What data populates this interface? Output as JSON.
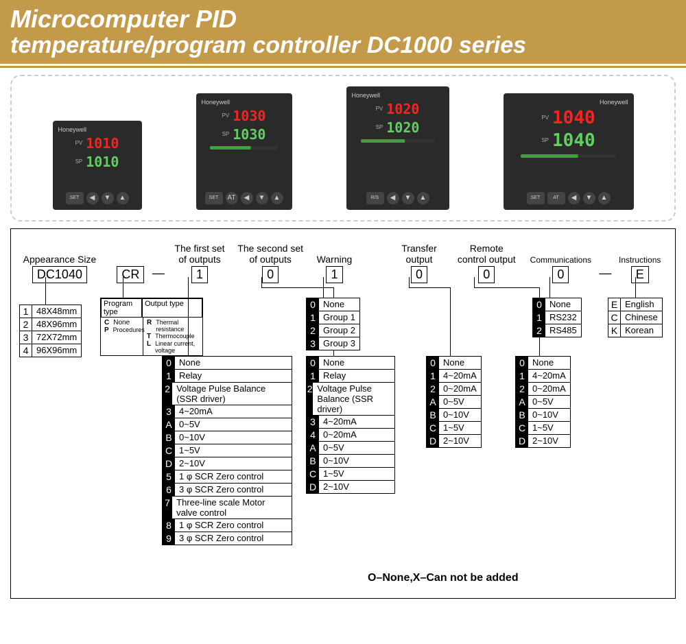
{
  "header": {
    "line1": "Microcomputer PID",
    "line2": "temperature/program controller DC1000 series"
  },
  "products": [
    {
      "pv": "1010",
      "sp": "1010",
      "brand": "Honeywell"
    },
    {
      "pv": "1030",
      "sp": "1030",
      "brand": "Honeywell"
    },
    {
      "pv": "1020",
      "sp": "1020",
      "brand": "Honeywell"
    },
    {
      "pv": "1040",
      "sp": "1040",
      "brand": "Honeywell"
    }
  ],
  "columns": {
    "appearance": {
      "label": "Appearance Size",
      "code": "DC1040"
    },
    "cr": {
      "label": "",
      "code": "CR"
    },
    "output1": {
      "label1": "The first set",
      "label2": "of outputs",
      "code": "1"
    },
    "output2": {
      "label1": "The second set",
      "label2": "of outputs",
      "code": "0"
    },
    "warning": {
      "label": "Warning",
      "code": "1"
    },
    "transfer": {
      "label1": "Transfer",
      "label2": "output",
      "code": "0"
    },
    "remote": {
      "label1": "Remote",
      "label2": "control output",
      "code": "0"
    },
    "comms": {
      "label": "Communications",
      "code": "0"
    },
    "instr": {
      "label": "Instructions",
      "code": "E"
    }
  },
  "appearance_opts": [
    {
      "k": "1",
      "v": "48X48mm"
    },
    {
      "k": "2",
      "v": "48X96mm"
    },
    {
      "k": "3",
      "v": "72X72mm"
    },
    {
      "k": "4",
      "v": "96X96mm"
    }
  ],
  "cr_sub": {
    "hdr1": "Program type",
    "hdr2": "Output type",
    "program": [
      {
        "k": "C",
        "v": "None"
      },
      {
        "k": "P",
        "v": "Procedures"
      }
    ],
    "output": [
      {
        "k": "R",
        "v": "Thermal resistance"
      },
      {
        "k": "T",
        "v": "Thermocouple"
      },
      {
        "k": "L",
        "v": "Linear current, voltage"
      }
    ]
  },
  "output1_opts": [
    {
      "k": "0",
      "v": "None"
    },
    {
      "k": "1",
      "v": "Relay"
    },
    {
      "k": "2",
      "v": "Voltage Pulse Balance (SSR driver)"
    },
    {
      "k": "3",
      "v": "4~20mA"
    },
    {
      "k": "A",
      "v": "0~5V"
    },
    {
      "k": "B",
      "v": "0~10V"
    },
    {
      "k": "C",
      "v": "1~5V"
    },
    {
      "k": "D",
      "v": "2~10V"
    },
    {
      "k": "5",
      "v": "1 φ SCR Zero control"
    },
    {
      "k": "6",
      "v": "3 φ SCR Zero control"
    },
    {
      "k": "7",
      "v": "Three-line scale Motor valve control"
    },
    {
      "k": "8",
      "v": "1 φ SCR Zero control"
    },
    {
      "k": "9",
      "v": "3 φ SCR Zero control"
    }
  ],
  "output2_opts": [
    {
      "k": "0",
      "v": "None"
    },
    {
      "k": "1",
      "v": "Relay"
    },
    {
      "k": "2",
      "v": "Voltage Pulse Balance (SSR driver)"
    },
    {
      "k": "3",
      "v": "4~20mA"
    },
    {
      "k": "4",
      "v": "0~20mA"
    },
    {
      "k": "A",
      "v": "0~5V"
    },
    {
      "k": "B",
      "v": "0~10V"
    },
    {
      "k": "C",
      "v": "1~5V"
    },
    {
      "k": "D",
      "v": "2~10V"
    }
  ],
  "warning_opts": [
    {
      "k": "0",
      "v": "None"
    },
    {
      "k": "1",
      "v": "Group 1"
    },
    {
      "k": "2",
      "v": "Group 2"
    },
    {
      "k": "3",
      "v": "Group 3"
    }
  ],
  "transfer_opts": [
    {
      "k": "0",
      "v": "None"
    },
    {
      "k": "1",
      "v": "4~20mA"
    },
    {
      "k": "2",
      "v": "0~20mA"
    },
    {
      "k": "A",
      "v": "0~5V"
    },
    {
      "k": "B",
      "v": "0~10V"
    },
    {
      "k": "C",
      "v": "1~5V"
    },
    {
      "k": "D",
      "v": "2~10V"
    }
  ],
  "remote_opts": [
    {
      "k": "0",
      "v": "None"
    },
    {
      "k": "1",
      "v": "4~20mA"
    },
    {
      "k": "2",
      "v": "0~20mA"
    },
    {
      "k": "A",
      "v": "0~5V"
    },
    {
      "k": "B",
      "v": "0~10V"
    },
    {
      "k": "C",
      "v": "1~5V"
    },
    {
      "k": "D",
      "v": "2~10V"
    }
  ],
  "comms_opts": [
    {
      "k": "0",
      "v": "None"
    },
    {
      "k": "1",
      "v": "RS232"
    },
    {
      "k": "2",
      "v": "RS485"
    }
  ],
  "instr_opts": [
    {
      "k": "E",
      "v": "English"
    },
    {
      "k": "C",
      "v": "Chinese"
    },
    {
      "k": "K",
      "v": "Korean"
    }
  ],
  "footnote": "O–None,X–Can not be added"
}
